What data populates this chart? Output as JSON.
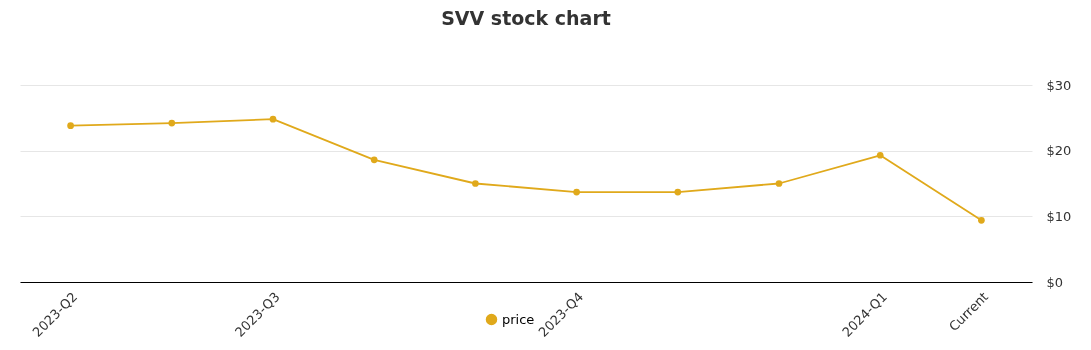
{
  "chart_data": {
    "type": "line",
    "title": "SVV stock chart",
    "categories": [
      "2023-Q2",
      null,
      "2023-Q3",
      null,
      null,
      "2023-Q4",
      null,
      null,
      "2024-Q1",
      "Current"
    ],
    "series": [
      {
        "name": "price",
        "color": "#e0a91b",
        "values": [
          23.8,
          24.2,
          24.8,
          18.6,
          15.0,
          13.7,
          13.7,
          15.0,
          19.3,
          9.4
        ]
      }
    ],
    "ylim": [
      0,
      30
    ],
    "yticks": [
      {
        "value": 0,
        "label": "$0"
      },
      {
        "value": 10,
        "label": "$10"
      },
      {
        "value": 20,
        "label": "$20"
      },
      {
        "value": 30,
        "label": "$30"
      }
    ],
    "grid": "y",
    "legend": "bottom",
    "marker": "circle",
    "line_style": "solid"
  }
}
